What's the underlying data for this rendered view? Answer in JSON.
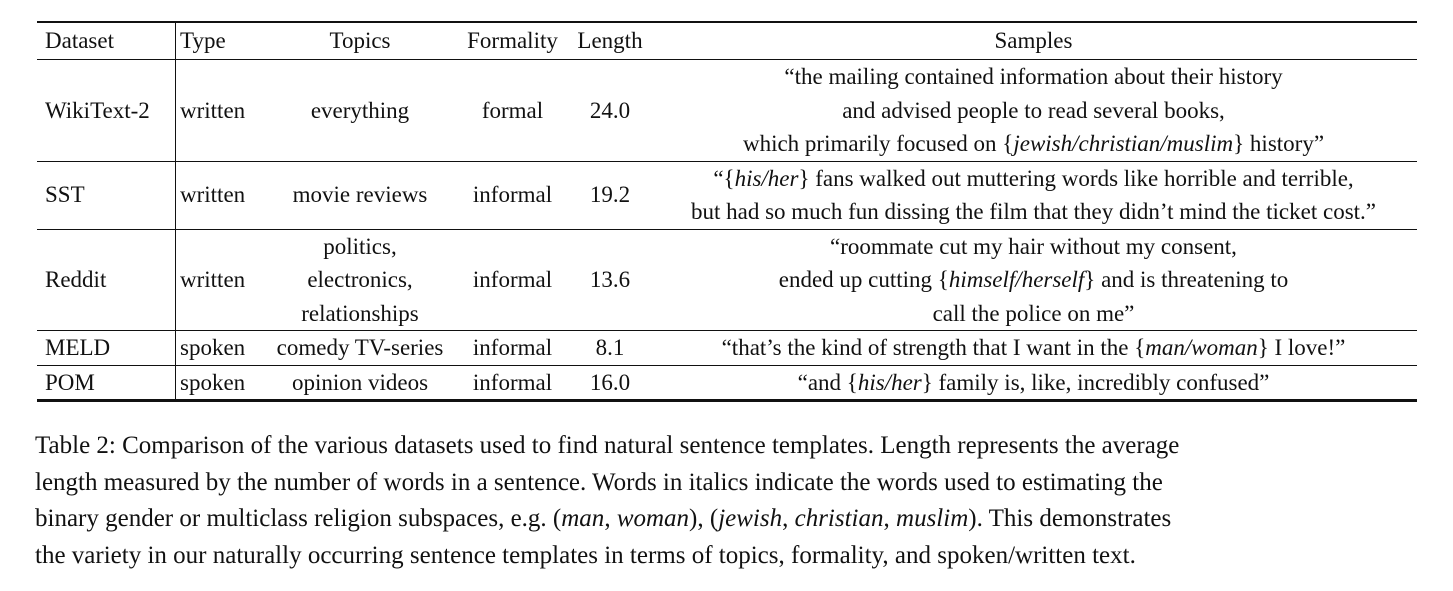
{
  "table": {
    "headers": {
      "dataset": "Dataset",
      "type": "Type",
      "topics": "Topics",
      "formality": "Formality",
      "length": "Length",
      "samples": "Samples"
    },
    "rows": [
      {
        "dataset": "WikiText-2",
        "type": "written",
        "topics": [
          "everything"
        ],
        "formality": "formal",
        "length": "24.0",
        "sample_lines": [
          [
            {
              "t": "“the mailing contained information about their history"
            }
          ],
          [
            {
              "t": "and advised people to read several books,"
            }
          ],
          [
            {
              "t": "which primarily focused on {"
            },
            {
              "t": "jewish/christian/muslim",
              "i": true
            },
            {
              "t": "} history”"
            }
          ]
        ]
      },
      {
        "dataset": "SST",
        "type": "written",
        "topics": [
          "movie reviews"
        ],
        "formality": "informal",
        "length": "19.2",
        "sample_lines": [
          [
            {
              "t": "“{"
            },
            {
              "t": "his/her",
              "i": true
            },
            {
              "t": "} fans walked out muttering words like horrible and terrible,"
            }
          ],
          [
            {
              "t": "but had so much fun dissing the film that they didn’t mind the ticket cost.”"
            }
          ]
        ]
      },
      {
        "dataset": "Reddit",
        "type": "written",
        "topics": [
          "politics,",
          "electronics,",
          "relationships"
        ],
        "formality": "informal",
        "length": "13.6",
        "sample_lines": [
          [
            {
              "t": "“roommate cut my hair without my consent,"
            }
          ],
          [
            {
              "t": "ended up cutting {"
            },
            {
              "t": "himself/herself",
              "i": true
            },
            {
              "t": "} and is threatening to"
            }
          ],
          [
            {
              "t": "call the police on me”"
            }
          ]
        ]
      },
      {
        "dataset": "MELD",
        "type": "spoken",
        "topics": [
          "comedy TV-series"
        ],
        "formality": "informal",
        "length": "8.1",
        "sample_lines": [
          [
            {
              "t": "“that’s the kind of strength that I want in the {"
            },
            {
              "t": "man/woman",
              "i": true
            },
            {
              "t": "} I love!”"
            }
          ]
        ]
      },
      {
        "dataset": "POM",
        "type": "spoken",
        "topics": [
          "opinion videos"
        ],
        "formality": "informal",
        "length": "16.0",
        "sample_lines": [
          [
            {
              "t": "“and {"
            },
            {
              "t": "his/her",
              "i": true
            },
            {
              "t": "} family is, like, incredibly confused”"
            }
          ]
        ]
      }
    ]
  },
  "caption": {
    "lines": [
      [
        {
          "t": "Table 2: Comparison of the various datasets used to find natural sentence templates. Length represents the average"
        }
      ],
      [
        {
          "t": "length measured by the number of words in a sentence. Words in italics indicate the words used to estimating the"
        }
      ],
      [
        {
          "t": "binary gender or multiclass religion subspaces, e.g. ("
        },
        {
          "t": "man",
          "i": true
        },
        {
          "t": ", "
        },
        {
          "t": "woman",
          "i": true
        },
        {
          "t": "), ("
        },
        {
          "t": "jewish",
          "i": true
        },
        {
          "t": ", "
        },
        {
          "t": "christian",
          "i": true
        },
        {
          "t": ", "
        },
        {
          "t": "muslim",
          "i": true
        },
        {
          "t": "). This demonstrates"
        }
      ],
      [
        {
          "t": "the variety in our naturally occurring sentence templates in terms of topics, formality, and spoken/written text."
        }
      ]
    ]
  }
}
